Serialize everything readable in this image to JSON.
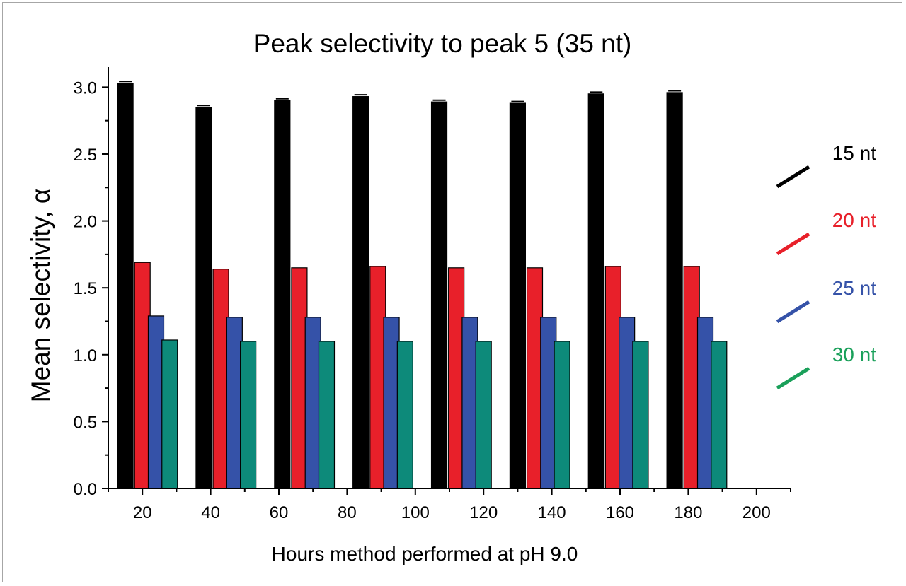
{
  "chart_data": {
    "type": "bar",
    "title": "Peak selectivity to peak 5 (35 nt)",
    "xlabel": "Hours method performed at pH 9.0",
    "ylabel": "Mean selectivity, α",
    "categories": [
      "20",
      "43",
      "66",
      "89",
      "112",
      "135",
      "158",
      "181"
    ],
    "xlim": [
      10,
      210
    ],
    "x_ticks": [
      "20",
      "40",
      "60",
      "80",
      "100",
      "120",
      "140",
      "160",
      "180",
      "200"
    ],
    "ylim": [
      0,
      3.15
    ],
    "y_ticks": [
      "0.0",
      "0.5",
      "1.0",
      "1.5",
      "2.0",
      "2.5",
      "3.0"
    ],
    "grid": false,
    "legend_position": "right",
    "series": [
      {
        "name": "15 nt",
        "color": "#000000",
        "x": [
          15,
          38,
          61,
          84,
          107,
          130,
          153,
          176
        ],
        "values": [
          3.03,
          2.85,
          2.9,
          2.93,
          2.89,
          2.88,
          2.95,
          2.96
        ]
      },
      {
        "name": "20 nt",
        "color": "#e8202a",
        "x": [
          20,
          43,
          66,
          89,
          112,
          135,
          158,
          181
        ],
        "values": [
          1.69,
          1.64,
          1.65,
          1.66,
          1.65,
          1.65,
          1.66,
          1.66
        ]
      },
      {
        "name": "25 nt",
        "color": "#3552a8",
        "x": [
          24,
          47,
          70,
          93,
          116,
          139,
          162,
          185
        ],
        "values": [
          1.29,
          1.28,
          1.28,
          1.28,
          1.28,
          1.28,
          1.28,
          1.28
        ]
      },
      {
        "name": "30 nt",
        "color": "#0d8a7a",
        "x": [
          28,
          51,
          74,
          97,
          120,
          143,
          166,
          189
        ],
        "values": [
          1.11,
          1.1,
          1.1,
          1.1,
          1.1,
          1.1,
          1.1,
          1.1
        ]
      }
    ],
    "legend_text_colors": [
      "#000000",
      "#e8202a",
      "#3552a8",
      "#1aa05a"
    ],
    "legend_swatch_colors": [
      "#000000",
      "#e8202a",
      "#3552a8",
      "#1aa05a"
    ]
  }
}
